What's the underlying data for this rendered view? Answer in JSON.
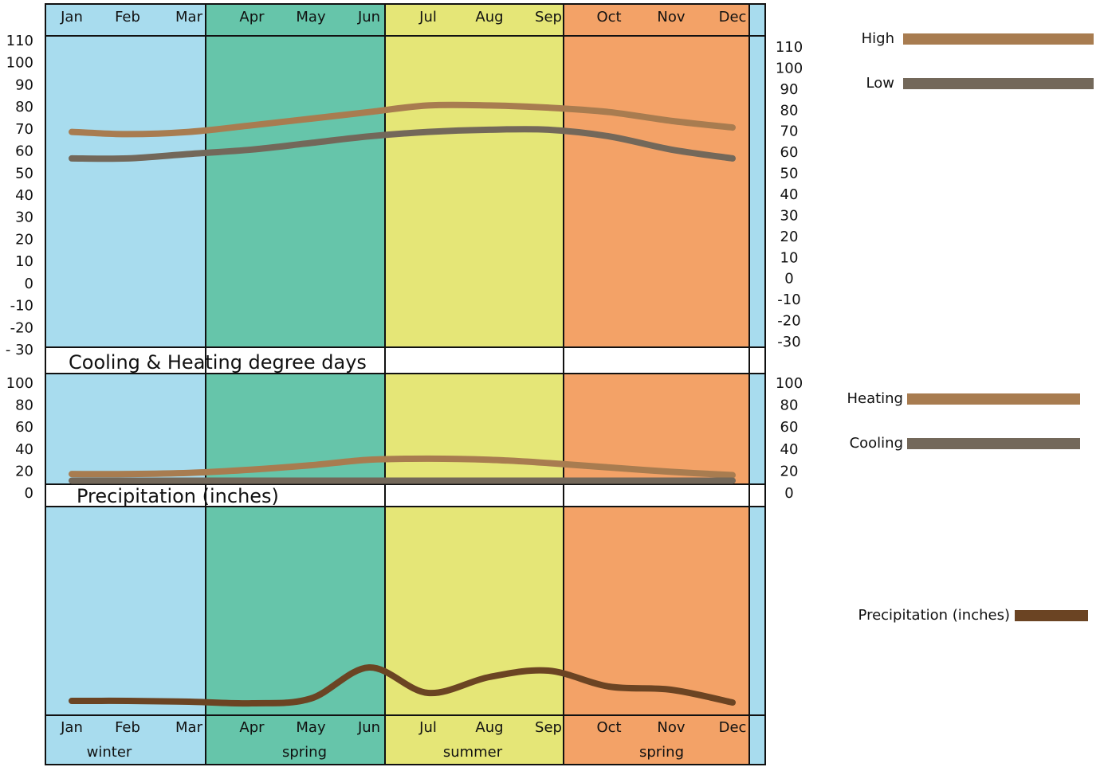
{
  "months": [
    "Jan",
    "Feb",
    "Mar",
    "Apr",
    "May",
    "Jun",
    "Jul",
    "Aug",
    "Sep",
    "Oct",
    "Nov",
    "Dec"
  ],
  "seasons": [
    "winter",
    "spring",
    "summer",
    "spring"
  ],
  "chart_data": [
    {
      "type": "line",
      "series": [
        {
          "name": "High",
          "color": "#a87c50",
          "values": [
            69,
            68,
            69,
            72,
            75,
            78,
            81,
            81,
            80,
            78,
            74,
            71
          ]
        },
        {
          "name": "Low",
          "color": "#73685a",
          "values": [
            57,
            57,
            59,
            61,
            64,
            67,
            69,
            70,
            70,
            67,
            61,
            57
          ]
        }
      ],
      "ylim": [
        -30,
        110
      ],
      "yticks": [
        110,
        100,
        90,
        80,
        70,
        60,
        50,
        40,
        30,
        20,
        10,
        0,
        -10,
        -20,
        {
          "value": -30,
          "label": "- 30"
        }
      ],
      "y2lim": [
        -30,
        110
      ],
      "y2ticks": [
        110,
        100,
        90,
        80,
        70,
        60,
        50,
        40,
        30,
        20,
        10,
        0,
        -10,
        -20,
        -30
      ]
    },
    {
      "type": "line",
      "title": "Cooling & Heating degree days",
      "series": [
        {
          "name": "Heating",
          "color": "#a87c50",
          "values": [
            18,
            18,
            19,
            22,
            26,
            31,
            32,
            31,
            28,
            24,
            20,
            17
          ]
        },
        {
          "name": "Cooling",
          "color": "#73685a",
          "values": [
            12,
            12,
            12,
            12,
            12,
            12,
            12,
            12,
            12,
            12,
            12,
            12
          ]
        }
      ],
      "ylim": [
        0,
        100
      ],
      "yticks": [
        100,
        80,
        60,
        40,
        20,
        0
      ],
      "y2lim": [
        0,
        100
      ],
      "y2ticks": [
        100,
        80,
        60,
        40,
        20,
        0
      ]
    },
    {
      "type": "line",
      "title": "Precipitation (inches)",
      "series": [
        {
          "name": "Precipitation (inches)",
          "color": "#6b4423",
          "values": [
            1.0,
            1.0,
            0.95,
            0.85,
            1.15,
            3.1,
            1.5,
            2.5,
            2.9,
            1.9,
            1.7,
            0.9
          ]
        }
      ]
    }
  ]
}
